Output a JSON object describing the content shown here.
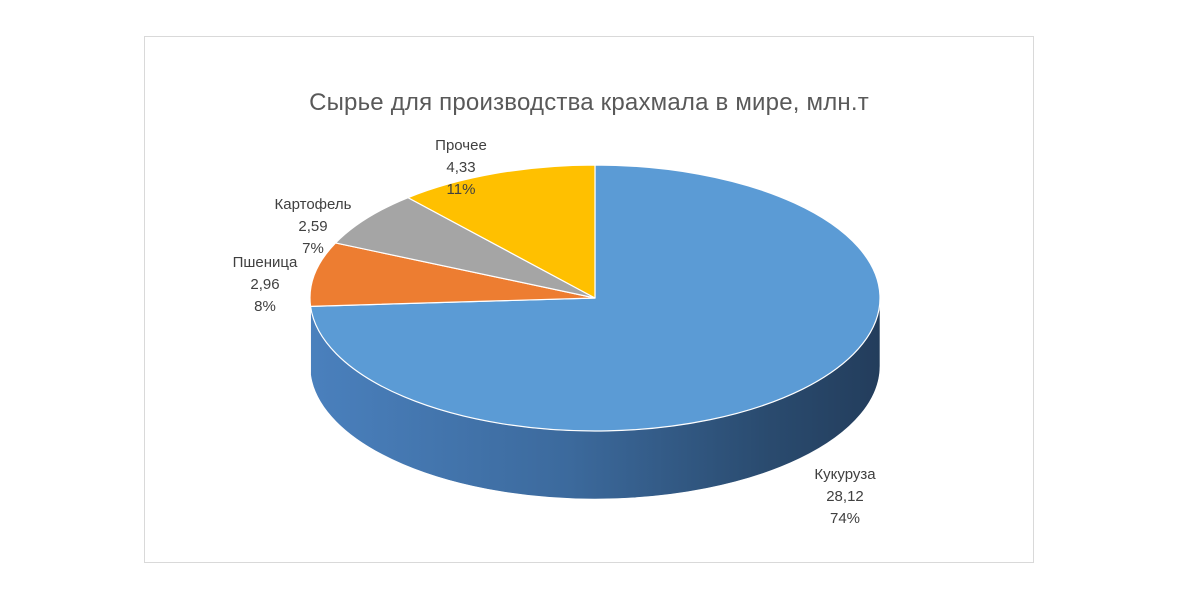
{
  "chart_data": {
    "type": "pie",
    "title": "Сырье для производства крахмала в мире, млн.т",
    "categories": [
      "Кукуруза",
      "Пшеница",
      "Картофель",
      "Прочее"
    ],
    "values": [
      28.12,
      2.96,
      2.59,
      4.33
    ],
    "value_labels": [
      "28,12",
      "2,96",
      "2,59",
      "4,33"
    ],
    "percent_labels": [
      "74%",
      "8%",
      "7%",
      "11%"
    ],
    "colors": [
      "#5b9bd5",
      "#ed7d31",
      "#a5a5a5",
      "#ffc000"
    ],
    "legend": "none",
    "style": "3d"
  }
}
